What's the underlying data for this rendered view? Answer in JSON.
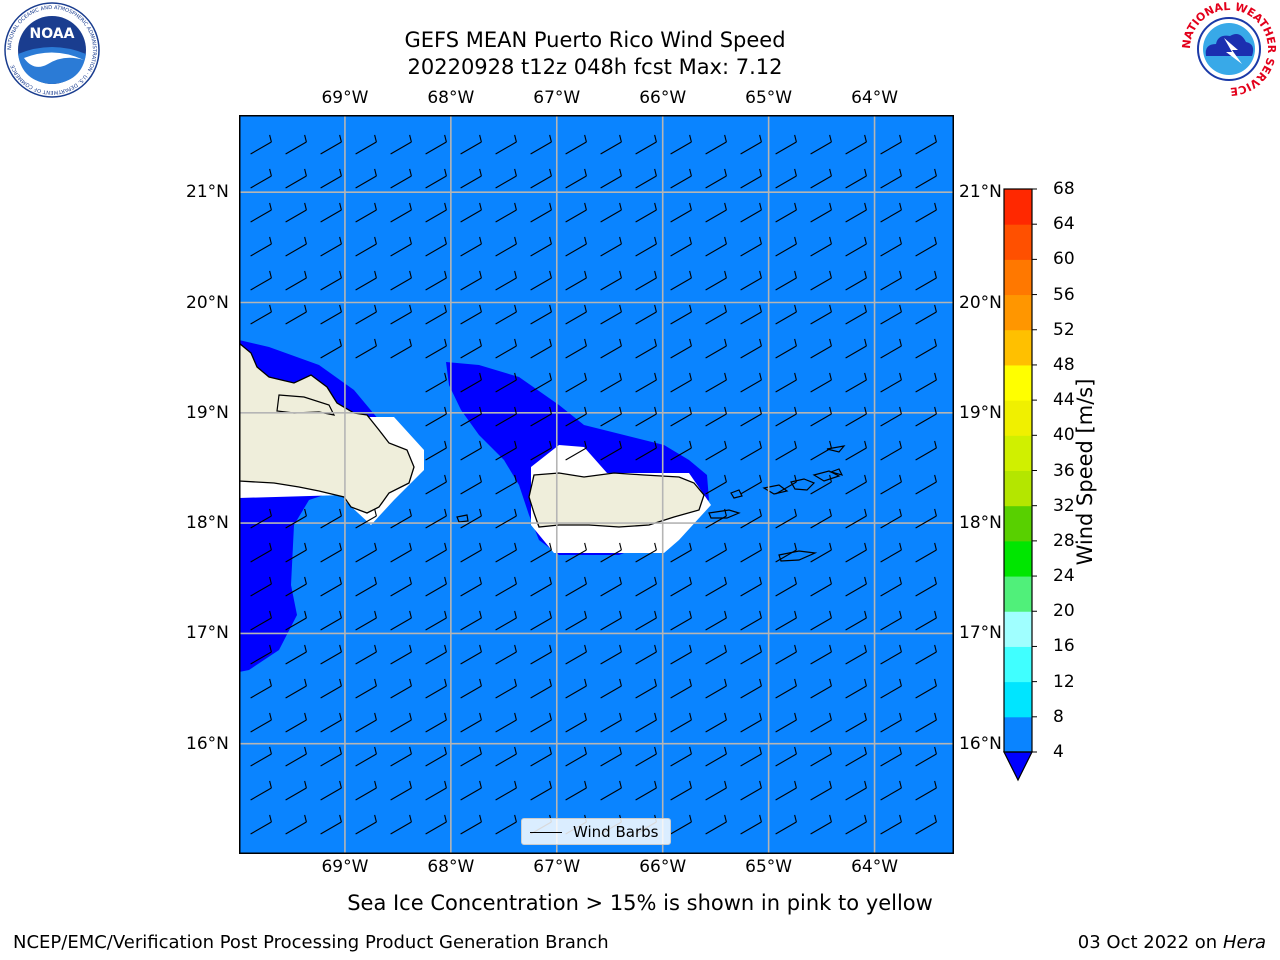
{
  "header": {
    "title": "GEFS MEAN Puerto Rico Wind Speed",
    "subtitle": "20220928 t12z 048h fcst   Max: 7.12"
  },
  "logos": {
    "noaa_text": "NOAA",
    "noaa_ring": "NATIONAL OCEANIC AND ATMOSPHERIC ADMINISTRATION · U.S. DEPARTMENT OF COMMERCE",
    "nws_ring": "NATIONAL WEATHER SERVICE"
  },
  "map": {
    "lon_range": [
      -70.0,
      -63.25
    ],
    "lat_range": [
      15.0,
      21.7
    ],
    "lon_ticks": [
      "69°W",
      "68°W",
      "67°W",
      "66°W",
      "65°W",
      "64°W"
    ],
    "lon_values": [
      -69,
      -68,
      -67,
      -66,
      -65,
      -64
    ],
    "lat_ticks": [
      "16°N",
      "17°N",
      "18°N",
      "19°N",
      "20°N",
      "21°N"
    ],
    "lat_values": [
      16,
      17,
      18,
      19,
      20,
      21
    ],
    "ocean_color": "#0a84ff",
    "low_wind_color": "#0000ff",
    "land_color": "#efeedb",
    "grid": true,
    "wind_barbs": {
      "direction_from_deg": 60,
      "speed_ms": 6
    }
  },
  "legend": {
    "label": "Wind Barbs",
    "placement": "lower-center"
  },
  "colorbar": {
    "title": "Wind Speed [m/s]",
    "levels": [
      "4",
      "8",
      "12",
      "16",
      "20",
      "24",
      "28",
      "32",
      "36",
      "40",
      "44",
      "48",
      "52",
      "56",
      "60",
      "64",
      "68"
    ],
    "colors": [
      "#0a84ff",
      "#00e5ff",
      "#40ffff",
      "#a0ffff",
      "#50f07a",
      "#00e600",
      "#58d000",
      "#b4e600",
      "#d0f000",
      "#f0f000",
      "#ffff00",
      "#ffc000",
      "#ff9600",
      "#ff7800",
      "#ff5000",
      "#ff2800",
      "#ff0000"
    ],
    "under_color": "#0000ff"
  },
  "caption": "Sea Ice Concentration > 15% is shown in pink to yellow",
  "footer": {
    "left": "NCEP/EMC/Verification Post Processing Product Generation Branch",
    "date": "03 Oct 2022 on ",
    "machine": "Hera"
  }
}
